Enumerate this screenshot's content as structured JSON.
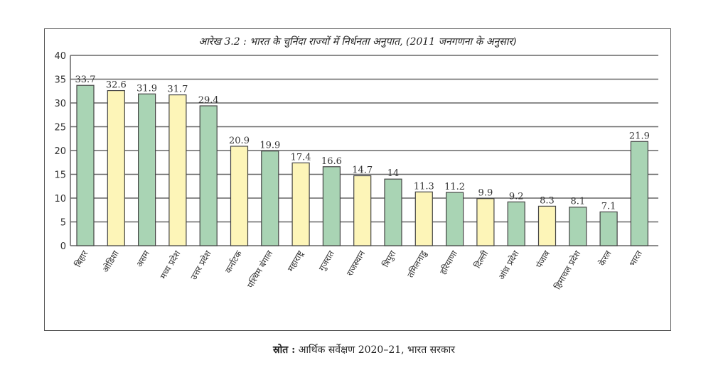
{
  "chart_data": {
    "type": "bar",
    "title": "आरेख 3.2 : भारत के चुनिंदा राज्यों में निर्धनता अनुपात, (2011 जनगणना के अनुसार)",
    "xlabel": "",
    "ylabel": "",
    "ylim": [
      0,
      40
    ],
    "yticks": [
      0,
      5,
      10,
      15,
      20,
      25,
      30,
      35,
      40
    ],
    "grid": true,
    "categories": [
      "बिहार",
      "ओडिशा",
      "असम",
      "मध्य प्रदेश",
      "उत्तर प्रदेश",
      "कर्नाटक",
      "पश्चिम बंगाल",
      "महाराष्ट्र",
      "गुजरात",
      "राजस्थान",
      "त्रिपुरा",
      "तमिलनाडु",
      "हरियाणा",
      "दिल्ली",
      "आंध्र प्रदेश",
      "पंजाब",
      "हिमाचल प्रदेश",
      "केरल",
      "भारत"
    ],
    "values": [
      33.7,
      32.6,
      31.9,
      31.7,
      29.4,
      20.9,
      19.9,
      17.4,
      16.6,
      14.7,
      14,
      11.3,
      11.2,
      9.9,
      9.2,
      8.3,
      8.1,
      7.1,
      21.9
    ],
    "bar_colors": [
      "#a9d4b4",
      "#fdf5b8",
      "#a9d4b4",
      "#fdf5b8",
      "#a9d4b4",
      "#fdf5b8",
      "#a9d4b4",
      "#fdf5b8",
      "#a9d4b4",
      "#fdf5b8",
      "#a9d4b4",
      "#fdf5b8",
      "#a9d4b4",
      "#fdf5b8",
      "#a9d4b4",
      "#fdf5b8",
      "#a9d4b4",
      "#a9d4b4",
      "#a9d4b4"
    ]
  },
  "source": {
    "label": "स्रोत :",
    "text": "आर्थिक सर्वेक्षण 2020–21, भारत सरकार"
  }
}
